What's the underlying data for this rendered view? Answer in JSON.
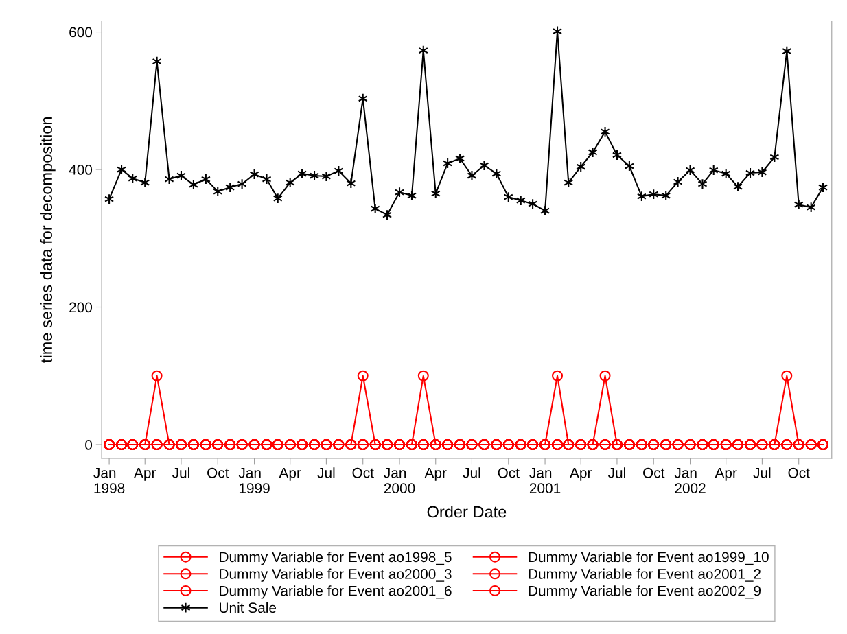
{
  "chart_data": {
    "type": "line",
    "xlabel": "Order Date",
    "ylabel": "time series data for decomposition",
    "x": [
      "1998-01",
      "1998-02",
      "1998-03",
      "1998-04",
      "1998-05",
      "1998-06",
      "1998-07",
      "1998-08",
      "1998-09",
      "1998-10",
      "1998-11",
      "1998-12",
      "1999-01",
      "1999-02",
      "1999-03",
      "1999-04",
      "1999-05",
      "1999-06",
      "1999-07",
      "1999-08",
      "1999-09",
      "1999-10",
      "1999-11",
      "1999-12",
      "2000-01",
      "2000-02",
      "2000-03",
      "2000-04",
      "2000-05",
      "2000-06",
      "2000-07",
      "2000-08",
      "2000-09",
      "2000-10",
      "2000-11",
      "2000-12",
      "2001-01",
      "2001-02",
      "2001-03",
      "2001-04",
      "2001-05",
      "2001-06",
      "2001-07",
      "2001-08",
      "2001-09",
      "2001-10",
      "2001-11",
      "2001-12",
      "2002-01",
      "2002-02",
      "2002-03",
      "2002-04",
      "2002-05",
      "2002-06",
      "2002-07",
      "2002-08",
      "2002-09",
      "2002-10",
      "2002-11",
      "2002-12"
    ],
    "series": [
      {
        "name": "Dummy Variable for Event ao1998_5",
        "color": "#ff0000",
        "marker": "circle",
        "values": [
          0,
          0,
          0,
          0,
          100,
          0,
          0,
          0,
          0,
          0,
          0,
          0,
          0,
          0,
          0,
          0,
          0,
          0,
          0,
          0,
          0,
          0,
          0,
          0,
          0,
          0,
          0,
          0,
          0,
          0,
          0,
          0,
          0,
          0,
          0,
          0,
          0,
          0,
          0,
          0,
          0,
          0,
          0,
          0,
          0,
          0,
          0,
          0,
          0,
          0,
          0,
          0,
          0,
          0,
          0,
          0,
          0,
          0,
          0,
          0
        ]
      },
      {
        "name": "Dummy Variable for Event ao1999_10",
        "color": "#ff0000",
        "marker": "circle",
        "values": [
          0,
          0,
          0,
          0,
          0,
          0,
          0,
          0,
          0,
          0,
          0,
          0,
          0,
          0,
          0,
          0,
          0,
          0,
          0,
          0,
          0,
          100,
          0,
          0,
          0,
          0,
          0,
          0,
          0,
          0,
          0,
          0,
          0,
          0,
          0,
          0,
          0,
          0,
          0,
          0,
          0,
          0,
          0,
          0,
          0,
          0,
          0,
          0,
          0,
          0,
          0,
          0,
          0,
          0,
          0,
          0,
          0,
          0,
          0,
          0
        ]
      },
      {
        "name": "Dummy Variable for Event ao2000_3",
        "color": "#ff0000",
        "marker": "circle",
        "values": [
          0,
          0,
          0,
          0,
          0,
          0,
          0,
          0,
          0,
          0,
          0,
          0,
          0,
          0,
          0,
          0,
          0,
          0,
          0,
          0,
          0,
          0,
          0,
          0,
          0,
          0,
          100,
          0,
          0,
          0,
          0,
          0,
          0,
          0,
          0,
          0,
          0,
          0,
          0,
          0,
          0,
          0,
          0,
          0,
          0,
          0,
          0,
          0,
          0,
          0,
          0,
          0,
          0,
          0,
          0,
          0,
          0,
          0,
          0,
          0
        ]
      },
      {
        "name": "Dummy Variable for Event ao2001_2",
        "color": "#ff0000",
        "marker": "circle",
        "values": [
          0,
          0,
          0,
          0,
          0,
          0,
          0,
          0,
          0,
          0,
          0,
          0,
          0,
          0,
          0,
          0,
          0,
          0,
          0,
          0,
          0,
          0,
          0,
          0,
          0,
          0,
          0,
          0,
          0,
          0,
          0,
          0,
          0,
          0,
          0,
          0,
          0,
          100,
          0,
          0,
          0,
          0,
          0,
          0,
          0,
          0,
          0,
          0,
          0,
          0,
          0,
          0,
          0,
          0,
          0,
          0,
          0,
          0,
          0,
          0
        ]
      },
      {
        "name": "Dummy Variable for Event ao2001_6",
        "color": "#ff0000",
        "marker": "circle",
        "values": [
          0,
          0,
          0,
          0,
          0,
          0,
          0,
          0,
          0,
          0,
          0,
          0,
          0,
          0,
          0,
          0,
          0,
          0,
          0,
          0,
          0,
          0,
          0,
          0,
          0,
          0,
          0,
          0,
          0,
          0,
          0,
          0,
          0,
          0,
          0,
          0,
          0,
          0,
          0,
          0,
          0,
          100,
          0,
          0,
          0,
          0,
          0,
          0,
          0,
          0,
          0,
          0,
          0,
          0,
          0,
          0,
          0,
          0,
          0,
          0
        ]
      },
      {
        "name": "Dummy Variable for Event ao2002_9",
        "color": "#ff0000",
        "marker": "circle",
        "values": [
          0,
          0,
          0,
          0,
          0,
          0,
          0,
          0,
          0,
          0,
          0,
          0,
          0,
          0,
          0,
          0,
          0,
          0,
          0,
          0,
          0,
          0,
          0,
          0,
          0,
          0,
          0,
          0,
          0,
          0,
          0,
          0,
          0,
          0,
          0,
          0,
          0,
          0,
          0,
          0,
          0,
          0,
          0,
          0,
          0,
          0,
          0,
          0,
          0,
          0,
          0,
          0,
          0,
          0,
          0,
          0,
          100,
          0,
          0,
          0
        ]
      },
      {
        "name": "Unit Sale",
        "color": "#000000",
        "marker": "cross",
        "values": [
          357,
          400,
          387,
          381,
          557,
          386,
          391,
          378,
          386,
          368,
          374,
          379,
          393,
          386,
          358,
          381,
          394,
          391,
          390,
          398,
          380,
          503,
          343,
          334,
          367,
          362,
          573,
          365,
          409,
          416,
          391,
          406,
          394,
          360,
          355,
          350,
          340,
          601,
          381,
          404,
          425,
          455,
          421,
          405,
          361,
          364,
          362,
          382,
          399,
          379,
          399,
          394,
          375,
          395,
          396,
          418,
          572,
          349,
          345,
          374
        ]
      }
    ],
    "xlim": [
      "1997-12-13",
      "2002-12-23"
    ],
    "xticks": [
      {
        "value": "1998-01",
        "label": "Jan\n1998"
      },
      {
        "value": "1998-04",
        "label": "Apr"
      },
      {
        "value": "1998-07",
        "label": "Jul"
      },
      {
        "value": "1998-10",
        "label": "Oct"
      },
      {
        "value": "1999-01",
        "label": "Jan\n1999"
      },
      {
        "value": "1999-04",
        "label": "Apr"
      },
      {
        "value": "1999-07",
        "label": "Jul"
      },
      {
        "value": "1999-10",
        "label": "Oct"
      },
      {
        "value": "2000-01",
        "label": "Jan\n2000"
      },
      {
        "value": "2000-04",
        "label": "Apr"
      },
      {
        "value": "2000-07",
        "label": "Jul"
      },
      {
        "value": "2000-10",
        "label": "Oct"
      },
      {
        "value": "2001-01",
        "label": "Jan\n2001"
      },
      {
        "value": "2001-04",
        "label": "Apr"
      },
      {
        "value": "2001-07",
        "label": "Jul"
      },
      {
        "value": "2001-10",
        "label": "Oct"
      },
      {
        "value": "2002-01",
        "label": "Jan\n2002"
      },
      {
        "value": "2002-04",
        "label": "Apr"
      },
      {
        "value": "2002-07",
        "label": "Jul"
      },
      {
        "value": "2002-10",
        "label": "Oct"
      }
    ],
    "ylim": [
      -20,
      616
    ],
    "yticks": [
      0,
      200,
      400,
      600
    ],
    "grid": false,
    "legend": "bottom",
    "line_style": "solid"
  }
}
